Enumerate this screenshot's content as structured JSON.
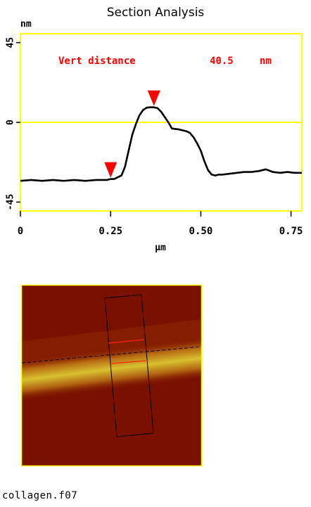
{
  "title": "Section Analysis",
  "filename": "collagen.f07",
  "colors": {
    "frame": "#ffff00",
    "marker": "#ff0000",
    "trace": "#000000",
    "image_base": "#7a1100",
    "fiber": "#c8b020"
  },
  "chart_data": {
    "type": "line",
    "title": "Section Analysis",
    "xlabel": "µm",
    "ylabel": "nm",
    "xlim": [
      0,
      0.78
    ],
    "ylim": [
      -50,
      50
    ],
    "xticks": [
      "0",
      "0.25",
      "0.50",
      "0.75"
    ],
    "xtick_values": [
      0,
      0.25,
      0.5,
      0.75
    ],
    "yticks": [
      "-45",
      "0",
      "45"
    ],
    "ytick_values": [
      -45,
      0,
      45
    ],
    "zero_line": true,
    "annotation": {
      "label": "Vert distance",
      "value": "40.5",
      "unit": "nm"
    },
    "markers": [
      {
        "x": 0.25,
        "y": -32
      },
      {
        "x": 0.37,
        "y": 8.5
      }
    ],
    "series": [
      {
        "x": [
          0,
          0.03,
          0.06,
          0.09,
          0.12,
          0.15,
          0.18,
          0.21,
          0.24,
          0.25,
          0.26,
          0.28,
          0.29,
          0.3,
          0.31,
          0.32,
          0.33,
          0.34,
          0.35,
          0.36,
          0.37,
          0.38,
          0.39,
          0.4,
          0.41,
          0.42,
          0.44,
          0.46,
          0.47,
          0.48,
          0.49,
          0.5,
          0.51,
          0.52,
          0.53,
          0.54,
          0.55,
          0.56,
          0.58,
          0.6,
          0.62,
          0.64,
          0.66,
          0.68,
          0.7,
          0.72,
          0.74,
          0.76,
          0.78
        ],
        "y": [
          -33,
          -32.5,
          -33,
          -32.5,
          -33,
          -32.5,
          -33,
          -32.5,
          -32.5,
          -32,
          -32,
          -30,
          -25,
          -16,
          -7,
          -1,
          4,
          7,
          8.3,
          8.5,
          8.5,
          8,
          6,
          3,
          0,
          -3.5,
          -4,
          -5,
          -6,
          -8.5,
          -12,
          -16,
          -22,
          -27,
          -29.5,
          -30,
          -29.5,
          -29.5,
          -29,
          -28.5,
          -28,
          -28,
          -27.5,
          -26.5,
          -28,
          -28.5,
          -28,
          -28.5,
          -28.5
        ]
      }
    ]
  }
}
